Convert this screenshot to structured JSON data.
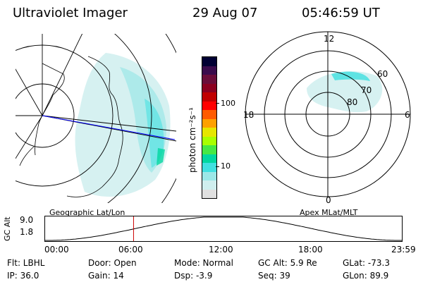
{
  "header": {
    "instrument": "Ultraviolet Imager",
    "date": "29 Aug 07",
    "time": "05:46:59  UT"
  },
  "colorbar": {
    "unit_label": "photon cm⁻²s⁻¹",
    "ticks": [
      "100",
      "10"
    ],
    "colors": [
      "#000033",
      "#3a0b4c",
      "#6a0d3a",
      "#8b0020",
      "#c00000",
      "#ff0000",
      "#ff5a00",
      "#ffa000",
      "#e6e600",
      "#a8ff00",
      "#45e845",
      "#00d7a0",
      "#40e0e0",
      "#9be7e7",
      "#cfeeee",
      "#e0e0e0"
    ]
  },
  "left_panel": {
    "caption": "Geographic Lat/Lon"
  },
  "right_panel": {
    "caption": "Apex MLat/MLT",
    "mlt_labels": {
      "top": "12",
      "bottom": "0",
      "left": "18",
      "right": "6"
    },
    "lat_labels": [
      "60",
      "70",
      "80"
    ]
  },
  "timeline": {
    "ylabel": "GC Alt",
    "yticks": [
      "9.0",
      "1.8"
    ],
    "xticks": [
      "00:00",
      "06:00",
      "12:00",
      "18:00",
      "23:59"
    ],
    "current_time_fraction": 0.2479
  },
  "status": {
    "row1": [
      {
        "text": "Flt: LBHL"
      },
      {
        "text": "Door: Open"
      },
      {
        "text": "Mode: Normal"
      },
      {
        "text": "GC Alt: 5.9 Re"
      },
      {
        "text": "GLat: -73.3"
      }
    ],
    "row2": [
      {
        "text": "IP: 36.0"
      },
      {
        "text": "Gain: 14"
      },
      {
        "text": "Dsp:     -3.9"
      },
      {
        "text": "Seq: 39"
      },
      {
        "text": "GLon:  89.9"
      }
    ]
  }
}
